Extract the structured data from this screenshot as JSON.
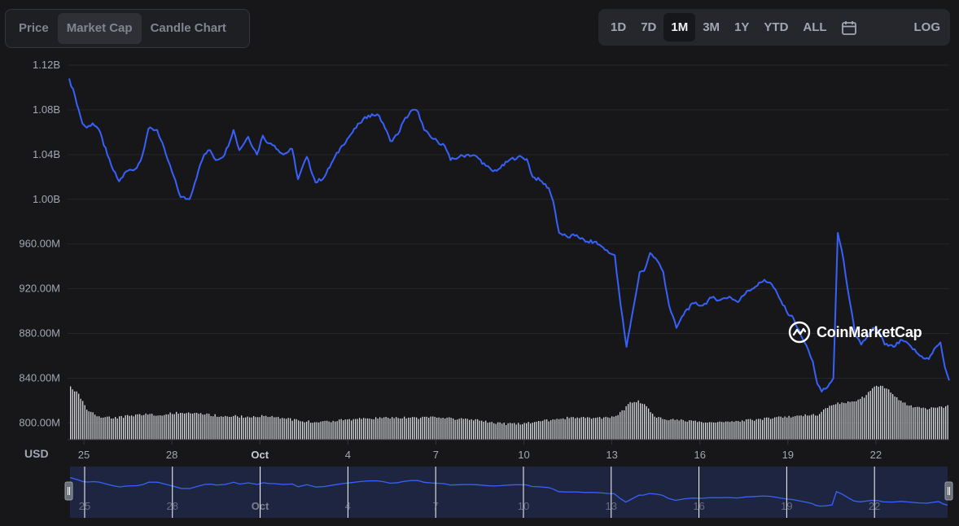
{
  "view_tabs": [
    "Price",
    "Market Cap",
    "Candle Chart"
  ],
  "active_view": "Market Cap",
  "ranges": [
    "1D",
    "7D",
    "1M",
    "3M",
    "1Y",
    "YTD",
    "ALL"
  ],
  "active_range": "1M",
  "log_label": "LOG",
  "currency_label": "USD",
  "watermark": "CoinMarketCap",
  "colors": {
    "line": "#3861fb",
    "volume": "#d9dbe0",
    "navigator_fill": "#1e2540"
  },
  "chart_data": {
    "type": "line",
    "title": "Market Cap",
    "ylabel": "USD",
    "ylim": [
      785000000,
      1120000000
    ],
    "y_ticks": [
      {
        "value": 1120000000,
        "label": "1.12B"
      },
      {
        "value": 1080000000,
        "label": "1.08B"
      },
      {
        "value": 1040000000,
        "label": "1.04B"
      },
      {
        "value": 1000000000,
        "label": "1.00B"
      },
      {
        "value": 960000000,
        "label": "960.00M"
      },
      {
        "value": 920000000,
        "label": "920.00M"
      },
      {
        "value": 880000000,
        "label": "880.00M"
      },
      {
        "value": 840000000,
        "label": "840.00M"
      },
      {
        "value": 800000000,
        "label": "800.00M"
      }
    ],
    "x_ticks": [
      {
        "day": 25,
        "label": "25",
        "bold": false
      },
      {
        "day": 28,
        "label": "28",
        "bold": false
      },
      {
        "day": 31,
        "label": "Oct",
        "bold": true
      },
      {
        "day": 34,
        "label": "4",
        "bold": false
      },
      {
        "day": 37,
        "label": "7",
        "bold": false
      },
      {
        "day": 40,
        "label": "10",
        "bold": false
      },
      {
        "day": 43,
        "label": "13",
        "bold": false
      },
      {
        "day": 46,
        "label": "16",
        "bold": false
      },
      {
        "day": 49,
        "label": "19",
        "bold": false
      },
      {
        "day": 52,
        "label": "22",
        "bold": false
      }
    ],
    "x_range": [
      24.5,
      54.5
    ],
    "series": [
      {
        "name": "Market Cap",
        "points": [
          [
            24.5,
            1108000000
          ],
          [
            24.7,
            1092000000
          ],
          [
            24.95,
            1068000000
          ],
          [
            25.1,
            1064000000
          ],
          [
            25.3,
            1068000000
          ],
          [
            25.5,
            1063000000
          ],
          [
            25.8,
            1040000000
          ],
          [
            26.0,
            1026000000
          ],
          [
            26.2,
            1016000000
          ],
          [
            26.45,
            1025000000
          ],
          [
            26.8,
            1028000000
          ],
          [
            27.0,
            1040000000
          ],
          [
            27.2,
            1063000000
          ],
          [
            27.5,
            1062000000
          ],
          [
            27.8,
            1040000000
          ],
          [
            28.0,
            1025000000
          ],
          [
            28.3,
            1002000000
          ],
          [
            28.6,
            1000000000
          ],
          [
            28.9,
            1025000000
          ],
          [
            29.1,
            1040000000
          ],
          [
            29.3,
            1044000000
          ],
          [
            29.5,
            1035000000
          ],
          [
            29.8,
            1040000000
          ],
          [
            30.1,
            1062000000
          ],
          [
            30.3,
            1044000000
          ],
          [
            30.6,
            1056000000
          ],
          [
            30.9,
            1040000000
          ],
          [
            31.1,
            1057000000
          ],
          [
            31.3,
            1050000000
          ],
          [
            31.5,
            1048000000
          ],
          [
            31.8,
            1040000000
          ],
          [
            32.1,
            1045000000
          ],
          [
            32.3,
            1018000000
          ],
          [
            32.6,
            1038000000
          ],
          [
            32.9,
            1015000000
          ],
          [
            33.2,
            1020000000
          ],
          [
            33.5,
            1035000000
          ],
          [
            33.8,
            1048000000
          ],
          [
            34.1,
            1058000000
          ],
          [
            34.4,
            1068000000
          ],
          [
            34.7,
            1075000000
          ],
          [
            35.0,
            1076000000
          ],
          [
            35.2,
            1068000000
          ],
          [
            35.45,
            1052000000
          ],
          [
            35.7,
            1058000000
          ],
          [
            35.9,
            1070000000
          ],
          [
            36.2,
            1080000000
          ],
          [
            36.4,
            1078000000
          ],
          [
            36.6,
            1062000000
          ],
          [
            36.85,
            1055000000
          ],
          [
            37.05,
            1052000000
          ],
          [
            37.3,
            1048000000
          ],
          [
            37.5,
            1035000000
          ],
          [
            37.8,
            1038000000
          ],
          [
            38.1,
            1040000000
          ],
          [
            38.4,
            1038000000
          ],
          [
            38.7,
            1030000000
          ],
          [
            38.95,
            1025000000
          ],
          [
            39.2,
            1028000000
          ],
          [
            39.5,
            1035000000
          ],
          [
            39.8,
            1038000000
          ],
          [
            40.1,
            1036000000
          ],
          [
            40.3,
            1020000000
          ],
          [
            40.55,
            1017000000
          ],
          [
            40.85,
            1010000000
          ],
          [
            41.0,
            998000000
          ],
          [
            41.2,
            970000000
          ],
          [
            41.5,
            966000000
          ],
          [
            41.8,
            968000000
          ],
          [
            42.1,
            962000000
          ],
          [
            42.4,
            962000000
          ],
          [
            42.7,
            957000000
          ],
          [
            42.9,
            952000000
          ],
          [
            43.1,
            950000000
          ],
          [
            43.3,
            905000000
          ],
          [
            43.5,
            868000000
          ],
          [
            43.75,
            905000000
          ],
          [
            43.95,
            935000000
          ],
          [
            44.1,
            936000000
          ],
          [
            44.3,
            952000000
          ],
          [
            44.55,
            945000000
          ],
          [
            44.75,
            935000000
          ],
          [
            44.95,
            905000000
          ],
          [
            45.2,
            885000000
          ],
          [
            45.5,
            900000000
          ],
          [
            45.8,
            907000000
          ],
          [
            46.1,
            905000000
          ],
          [
            46.4,
            912000000
          ],
          [
            46.7,
            910000000
          ],
          [
            47.0,
            913000000
          ],
          [
            47.3,
            908000000
          ],
          [
            47.6,
            918000000
          ],
          [
            47.9,
            922000000
          ],
          [
            48.2,
            928000000
          ],
          [
            48.45,
            924000000
          ],
          [
            48.7,
            912000000
          ],
          [
            48.95,
            900000000
          ],
          [
            49.2,
            893000000
          ],
          [
            49.45,
            878000000
          ],
          [
            49.7,
            865000000
          ],
          [
            49.85,
            855000000
          ],
          [
            50.0,
            835000000
          ],
          [
            50.15,
            828000000
          ],
          [
            50.35,
            832000000
          ],
          [
            50.55,
            840000000
          ],
          [
            50.7,
            970000000
          ],
          [
            50.9,
            945000000
          ],
          [
            51.1,
            910000000
          ],
          [
            51.3,
            878000000
          ],
          [
            51.5,
            870000000
          ],
          [
            51.7,
            877000000
          ],
          [
            51.9,
            885000000
          ],
          [
            52.1,
            882000000
          ],
          [
            52.3,
            870000000
          ],
          [
            52.6,
            868000000
          ],
          [
            52.9,
            874000000
          ],
          [
            53.2,
            868000000
          ],
          [
            53.5,
            860000000
          ],
          [
            53.8,
            857000000
          ],
          [
            54.05,
            868000000
          ],
          [
            54.2,
            872000000
          ],
          [
            54.35,
            850000000
          ],
          [
            54.5,
            838000000
          ]
        ]
      },
      {
        "name": "Volume",
        "points": [
          [
            24.5,
            1.0
          ],
          [
            24.8,
            0.8
          ],
          [
            25.1,
            0.45
          ],
          [
            25.5,
            0.3
          ],
          [
            26.0,
            0.28
          ],
          [
            26.5,
            0.32
          ],
          [
            27.0,
            0.36
          ],
          [
            27.5,
            0.34
          ],
          [
            28.0,
            0.38
          ],
          [
            28.5,
            0.4
          ],
          [
            29.0,
            0.37
          ],
          [
            29.5,
            0.33
          ],
          [
            30.0,
            0.32
          ],
          [
            30.5,
            0.3
          ],
          [
            31.0,
            0.32
          ],
          [
            31.5,
            0.3
          ],
          [
            32.0,
            0.25
          ],
          [
            32.5,
            0.2
          ],
          [
            33.0,
            0.19
          ],
          [
            33.5,
            0.21
          ],
          [
            34.0,
            0.24
          ],
          [
            34.5,
            0.26
          ],
          [
            35.0,
            0.27
          ],
          [
            35.5,
            0.28
          ],
          [
            36.0,
            0.28
          ],
          [
            36.5,
            0.28
          ],
          [
            37.0,
            0.29
          ],
          [
            37.5,
            0.26
          ],
          [
            38.0,
            0.24
          ],
          [
            38.5,
            0.22
          ],
          [
            39.0,
            0.16
          ],
          [
            39.5,
            0.14
          ],
          [
            40.0,
            0.16
          ],
          [
            40.5,
            0.2
          ],
          [
            41.0,
            0.24
          ],
          [
            41.5,
            0.28
          ],
          [
            42.0,
            0.3
          ],
          [
            42.5,
            0.27
          ],
          [
            43.0,
            0.3
          ],
          [
            43.3,
            0.4
          ],
          [
            43.6,
            0.62
          ],
          [
            43.9,
            0.66
          ],
          [
            44.2,
            0.5
          ],
          [
            44.5,
            0.28
          ],
          [
            45.0,
            0.24
          ],
          [
            45.5,
            0.22
          ],
          [
            46.0,
            0.18
          ],
          [
            46.5,
            0.18
          ],
          [
            47.0,
            0.2
          ],
          [
            47.5,
            0.22
          ],
          [
            48.0,
            0.24
          ],
          [
            48.5,
            0.28
          ],
          [
            49.0,
            0.3
          ],
          [
            49.5,
            0.33
          ],
          [
            50.0,
            0.35
          ],
          [
            50.3,
            0.5
          ],
          [
            50.7,
            0.6
          ],
          [
            51.0,
            0.62
          ],
          [
            51.3,
            0.66
          ],
          [
            51.6,
            0.75
          ],
          [
            51.9,
            0.95
          ],
          [
            52.2,
            1.0
          ],
          [
            52.5,
            0.85
          ],
          [
            52.8,
            0.66
          ],
          [
            53.1,
            0.55
          ],
          [
            53.4,
            0.5
          ],
          [
            53.7,
            0.48
          ],
          [
            54.0,
            0.5
          ],
          [
            54.3,
            0.52
          ],
          [
            54.5,
            0.55
          ]
        ]
      }
    ]
  }
}
